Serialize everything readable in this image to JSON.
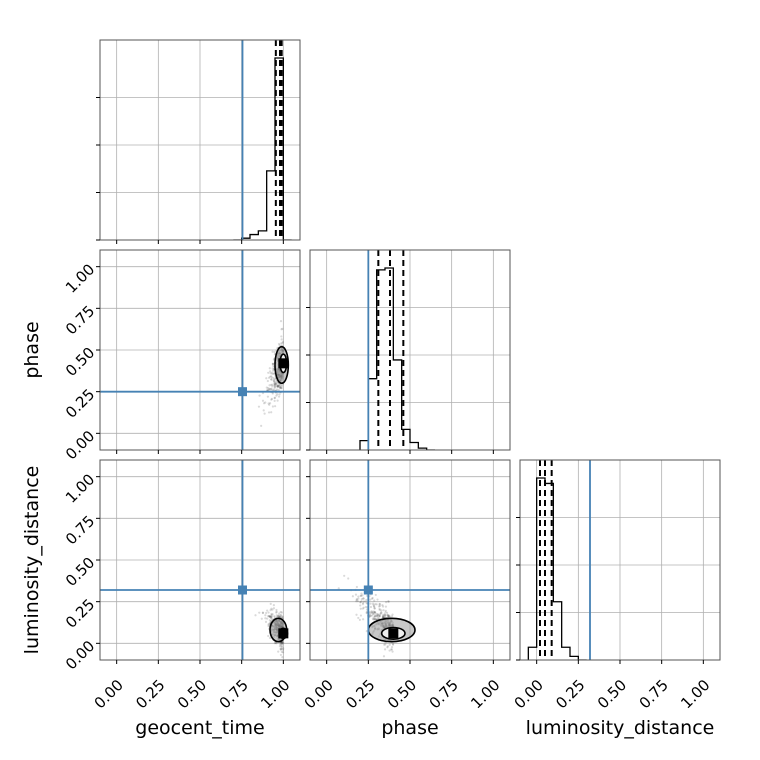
{
  "chart_data": {
    "type": "corner",
    "parameters": [
      "geocent_time",
      "phase",
      "luminosity_distance"
    ],
    "tick_labels": [
      "0.00",
      "0.25",
      "0.50",
      "0.75",
      "1.00"
    ],
    "tick_values": [
      0,
      0.25,
      0.5,
      0.75,
      1.0
    ],
    "axis_range": [
      -0.1,
      1.1
    ],
    "truths": {
      "geocent_time": 0.755,
      "phase": 0.25,
      "luminosity_distance": 0.32
    },
    "truth_color": "#4682b4",
    "grid": true,
    "histograms": {
      "geocent_time": {
        "bin_edges": [
          0.7,
          0.75,
          0.8,
          0.85,
          0.9,
          0.95,
          1.0,
          1.05
        ],
        "counts": [
          0.0,
          0.01,
          0.03,
          0.05,
          0.38,
          1.0,
          0.0
        ],
        "quantiles": [
          0.955,
          0.98,
          0.99
        ]
      },
      "phase": {
        "bin_edges": [
          0.2,
          0.25,
          0.3,
          0.35,
          0.4,
          0.45,
          0.5,
          0.55,
          0.6,
          0.65
        ],
        "counts": [
          0.05,
          0.38,
          0.96,
          0.97,
          0.48,
          0.11,
          0.04,
          0.01,
          0.0
        ],
        "quantiles": [
          0.31,
          0.38,
          0.46
        ]
      },
      "luminosity_distance": {
        "bin_edges": [
          -0.05,
          0.0,
          0.05,
          0.1,
          0.15,
          0.2,
          0.25,
          0.3
        ],
        "counts": [
          0.07,
          1.0,
          0.97,
          0.32,
          0.07,
          0.02,
          0.0
        ],
        "quantiles": [
          0.02,
          0.05,
          0.09
        ]
      }
    },
    "posteriors_2d": {
      "phase_vs_geocent_time": {
        "x": "geocent_time",
        "y": "phase",
        "peak": [
          1.0,
          0.42
        ],
        "spread": [
          0.035,
          0.06
        ],
        "contours": [
          {
            "level": "outer",
            "cx": 0.99,
            "cy": 0.41,
            "rx": 0.04,
            "ry": 0.11
          },
          {
            "level": "inner",
            "cx": 1.0,
            "cy": 0.42,
            "rx": 0.02,
            "ry": 0.055
          }
        ]
      },
      "luminosity_distance_vs_geocent_time": {
        "x": "geocent_time",
        "y": "luminosity_distance",
        "peak": [
          1.0,
          0.06
        ],
        "spread": [
          0.04,
          0.05
        ],
        "contours": [
          {
            "level": "outer",
            "cx": 0.97,
            "cy": 0.08,
            "rx": 0.05,
            "ry": 0.07
          },
          {
            "level": "inner",
            "cx": 1.0,
            "cy": 0.06,
            "rx": 0.025,
            "ry": 0.03
          }
        ]
      },
      "luminosity_distance_vs_phase": {
        "x": "phase",
        "y": "luminosity_distance",
        "peak": [
          0.4,
          0.06
        ],
        "spread": [
          0.08,
          0.05
        ],
        "contours": [
          {
            "level": "outer",
            "cx": 0.39,
            "cy": 0.08,
            "rx": 0.14,
            "ry": 0.07
          },
          {
            "level": "inner",
            "cx": 0.4,
            "cy": 0.06,
            "rx": 0.07,
            "ry": 0.035
          }
        ]
      }
    }
  }
}
